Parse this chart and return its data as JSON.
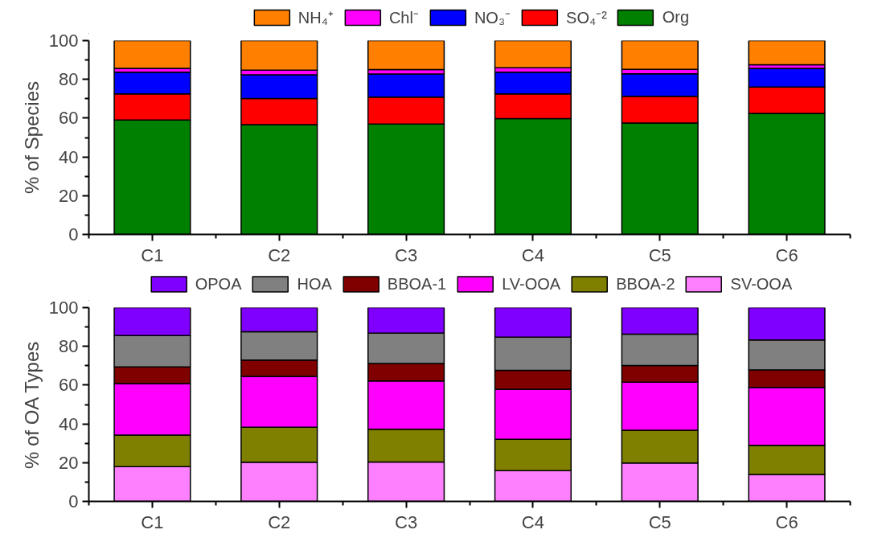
{
  "chart_data": [
    {
      "type": "bar",
      "stacked": true,
      "ylabel": "% of Species",
      "categories": [
        "C1",
        "C2",
        "C3",
        "C4",
        "C5",
        "C6"
      ],
      "ylim": [
        0,
        100
      ],
      "yticks": [
        0,
        20,
        40,
        60,
        80,
        100
      ],
      "grid": false,
      "legend": "top",
      "series": [
        {
          "name": "Org",
          "color": "#008000",
          "values": [
            59,
            56.6,
            56.9,
            59.7,
            57.5,
            62.5
          ]
        },
        {
          "name": "SO₄⁻²",
          "color": "#ff0000",
          "values": [
            13.5,
            13.5,
            13.9,
            12.8,
            13.8,
            13.5
          ]
        },
        {
          "name": "NO₃⁻",
          "color": "#0000ff",
          "values": [
            11.2,
            12.3,
            12,
            11.2,
            11.6,
            9.7
          ]
        },
        {
          "name": "Chl⁻",
          "color": "#ff00ff",
          "values": [
            2,
            2.3,
            2.3,
            2.3,
            2.3,
            1.9
          ]
        },
        {
          "name": "NH₄⁺",
          "color": "#ff8000",
          "values": [
            14.3,
            15.3,
            14.9,
            14,
            14.8,
            12.4
          ]
        }
      ]
    },
    {
      "type": "bar",
      "stacked": true,
      "ylabel": "% of OA Types",
      "categories": [
        "C1",
        "C2",
        "C3",
        "C4",
        "C5",
        "C6"
      ],
      "ylim": [
        0,
        100
      ],
      "yticks": [
        0,
        20,
        40,
        60,
        80,
        100
      ],
      "grid": false,
      "legend": "top",
      "series": [
        {
          "name": "SV-OOA",
          "color": "#ff80ff",
          "values": [
            17.9,
            20.2,
            20.3,
            15.9,
            19.8,
            13.9
          ]
        },
        {
          "name": "BBOA-2",
          "color": "#808000",
          "values": [
            16.3,
            18.1,
            16.9,
            16.2,
            16.9,
            15
          ]
        },
        {
          "name": "LV-OOA",
          "color": "#ff00ff",
          "values": [
            26.6,
            26.2,
            24.9,
            25.8,
            24.8,
            29.9
          ]
        },
        {
          "name": "BBOA-1",
          "color": "#800000",
          "values": [
            8.6,
            8.4,
            9.1,
            9.7,
            8.6,
            9
          ]
        },
        {
          "name": "HOA",
          "color": "#808080",
          "values": [
            16.2,
            14.7,
            15.6,
            17.2,
            16.2,
            15.5
          ]
        },
        {
          "name": "OPOA",
          "color": "#8000ff",
          "values": [
            14.4,
            12.4,
            13.2,
            15.2,
            13.7,
            16.7
          ]
        }
      ]
    }
  ]
}
